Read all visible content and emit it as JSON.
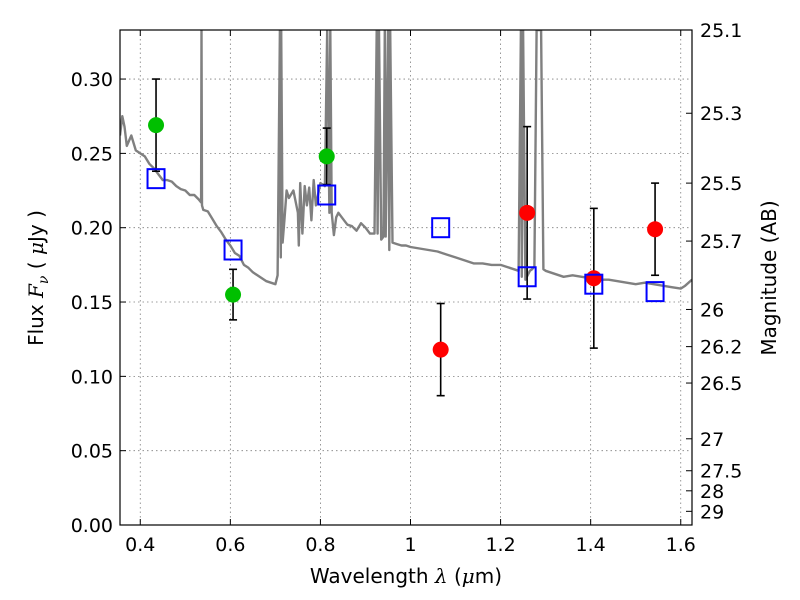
{
  "chart_data": {
    "type": "scatter",
    "xlabel_prefix": "Wavelength",
    "xlabel_symbol": "λ",
    "xlabel_unit_open": "(",
    "xlabel_unit_mu": "μ",
    "xlabel_unit_rest": "m)",
    "ylabel_prefix": "Flux",
    "ylabel_symbol_main": "F",
    "ylabel_symbol_sub": "ν",
    "ylabel_unit_open": "(",
    "ylabel_unit_mu": "μ",
    "ylabel_unit_rest": "Jy )",
    "y2label": "Magnitude (AB)",
    "xlim": [
      0.355,
      1.625
    ],
    "ylim": [
      0.0,
      0.333
    ],
    "xticks": [
      {
        "value": 0.4,
        "label": "0.4"
      },
      {
        "value": 0.6,
        "label": "0.6"
      },
      {
        "value": 0.8,
        "label": "0.8"
      },
      {
        "value": 1.0,
        "label": "1"
      },
      {
        "value": 1.2,
        "label": "1.2"
      },
      {
        "value": 1.4,
        "label": "1.4"
      },
      {
        "value": 1.6,
        "label": "1.6"
      }
    ],
    "yticks": [
      {
        "value": 0.0,
        "label": "0.00"
      },
      {
        "value": 0.05,
        "label": "0.05"
      },
      {
        "value": 0.1,
        "label": "0.10"
      },
      {
        "value": 0.15,
        "label": "0.15"
      },
      {
        "value": 0.2,
        "label": "0.20"
      },
      {
        "value": 0.25,
        "label": "0.25"
      },
      {
        "value": 0.3,
        "label": "0.30"
      }
    ],
    "mag_ticks": [
      {
        "flux": 0.333,
        "label": "25.1"
      },
      {
        "flux": 0.277,
        "label": "25.3"
      },
      {
        "flux": 0.23,
        "label": "25.5"
      },
      {
        "flux": 0.191,
        "label": "25.7"
      },
      {
        "flux": 0.145,
        "label": "26"
      },
      {
        "flux": 0.12,
        "label": "26.2"
      },
      {
        "flux": 0.0955,
        "label": "26.5"
      },
      {
        "flux": 0.058,
        "label": "27"
      },
      {
        "flux": 0.0365,
        "label": "27.5"
      },
      {
        "flux": 0.023,
        "label": "28"
      },
      {
        "flux": 0.0092,
        "label": "29"
      }
    ],
    "grid": true,
    "colors": {
      "optical": "#00bf00",
      "nir": "#ff0000",
      "model": "#0000ff",
      "sed": "#808080",
      "errorbar": "#000000"
    },
    "series": [
      {
        "marker": "circle",
        "color": "#00bf00",
        "points": [
          {
            "x": 0.435,
            "y": 0.269,
            "err": 0.031
          },
          {
            "x": 0.606,
            "y": 0.155,
            "err": 0.017
          },
          {
            "x": 0.814,
            "y": 0.248,
            "err": 0.019
          }
        ]
      },
      {
        "marker": "circle",
        "color": "#ff0000",
        "points": [
          {
            "x": 1.067,
            "y": 0.118,
            "err": 0.031
          },
          {
            "x": 1.259,
            "y": 0.21,
            "err": 0.058
          },
          {
            "x": 1.407,
            "y": 0.166,
            "err": 0.047
          },
          {
            "x": 1.543,
            "y": 0.199,
            "err": 0.031
          }
        ]
      },
      {
        "marker": "square",
        "color": "#0000ff",
        "points": [
          {
            "x": 0.435,
            "y": 0.233
          },
          {
            "x": 0.606,
            "y": 0.185
          },
          {
            "x": 0.814,
            "y": 0.222
          },
          {
            "x": 1.067,
            "y": 0.2
          },
          {
            "x": 1.259,
            "y": 0.167
          },
          {
            "x": 1.407,
            "y": 0.162
          },
          {
            "x": 1.543,
            "y": 0.157
          }
        ]
      },
      {
        "type": "line",
        "color": "#808080",
        "x": [
          0.355,
          0.36,
          0.365,
          0.37,
          0.38,
          0.39,
          0.4,
          0.41,
          0.42,
          0.43,
          0.44,
          0.45,
          0.46,
          0.47,
          0.48,
          0.49,
          0.5,
          0.51,
          0.52,
          0.53,
          0.535,
          0.536,
          0.537,
          0.54,
          0.55,
          0.56,
          0.57,
          0.58,
          0.59,
          0.6,
          0.61,
          0.62,
          0.63,
          0.64,
          0.65,
          0.66,
          0.67,
          0.68,
          0.69,
          0.7,
          0.705,
          0.71,
          0.712,
          0.713,
          0.716,
          0.72,
          0.725,
          0.73,
          0.74,
          0.75,
          0.752,
          0.755,
          0.76,
          0.765,
          0.77,
          0.775,
          0.78,
          0.785,
          0.79,
          0.8,
          0.81,
          0.815,
          0.82,
          0.822,
          0.825,
          0.83,
          0.835,
          0.84,
          0.85,
          0.86,
          0.87,
          0.88,
          0.89,
          0.9,
          0.91,
          0.92,
          0.925,
          0.927,
          0.93,
          0.935,
          0.94,
          0.943,
          0.945,
          0.95,
          0.953,
          0.955,
          0.96,
          0.97,
          0.98,
          0.99,
          1.0,
          1.02,
          1.04,
          1.06,
          1.08,
          1.1,
          1.12,
          1.14,
          1.16,
          1.18,
          1.2,
          1.22,
          1.24,
          1.245,
          1.247,
          1.25,
          1.255,
          1.26,
          1.265,
          1.27,
          1.275,
          1.28,
          1.285,
          1.29,
          1.295,
          1.3,
          1.32,
          1.34,
          1.36,
          1.38,
          1.4,
          1.42,
          1.44,
          1.46,
          1.48,
          1.5,
          1.52,
          1.54,
          1.56,
          1.58,
          1.6,
          1.61,
          1.625
        ],
        "y": [
          0.262,
          0.275,
          0.268,
          0.255,
          0.262,
          0.252,
          0.25,
          0.248,
          0.243,
          0.24,
          0.236,
          0.232,
          0.232,
          0.231,
          0.228,
          0.226,
          0.225,
          0.222,
          0.222,
          0.219,
          0.217,
          0.333,
          0.215,
          0.212,
          0.211,
          0.206,
          0.201,
          0.197,
          0.192,
          0.188,
          0.183,
          0.181,
          0.175,
          0.173,
          0.17,
          0.168,
          0.166,
          0.164,
          0.163,
          0.162,
          0.168,
          0.333,
          0.18,
          0.333,
          0.19,
          0.205,
          0.225,
          0.22,
          0.225,
          0.21,
          0.188,
          0.23,
          0.196,
          0.228,
          0.215,
          0.227,
          0.205,
          0.232,
          0.215,
          0.23,
          0.228,
          0.333,
          0.21,
          0.333,
          0.21,
          0.195,
          0.207,
          0.21,
          0.206,
          0.202,
          0.201,
          0.198,
          0.203,
          0.2,
          0.196,
          0.196,
          0.333,
          0.196,
          0.333,
          0.192,
          0.194,
          0.333,
          0.194,
          0.333,
          0.185,
          0.333,
          0.19,
          0.189,
          0.188,
          0.188,
          0.187,
          0.186,
          0.185,
          0.184,
          0.182,
          0.18,
          0.178,
          0.176,
          0.176,
          0.175,
          0.175,
          0.173,
          0.171,
          0.333,
          0.167,
          0.333,
          0.165,
          0.168,
          0.171,
          0.172,
          0.174,
          0.333,
          0.333,
          0.333,
          0.172,
          0.171,
          0.169,
          0.167,
          0.168,
          0.167,
          0.166,
          0.165,
          0.165,
          0.164,
          0.163,
          0.162,
          0.163,
          0.162,
          0.161,
          0.16,
          0.159,
          0.161,
          0.165
        ]
      }
    ]
  }
}
